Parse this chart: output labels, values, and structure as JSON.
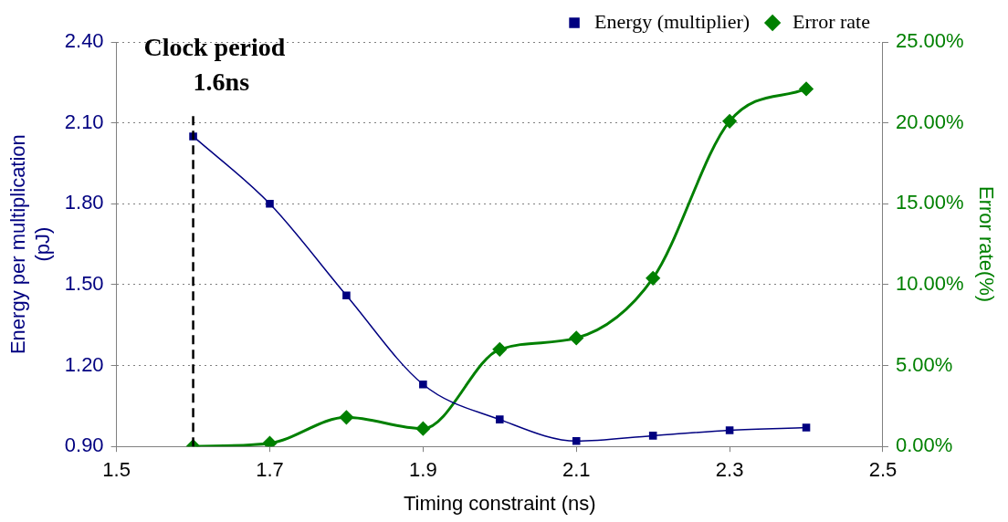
{
  "chart_data": {
    "type": "line",
    "xlabel": "Timing constraint (ns)",
    "ylabel": "Energy per multiplication\n(pJ)",
    "y2label": "Error rate(%)",
    "x": [
      1.6,
      1.7,
      1.8,
      1.9,
      2.0,
      2.1,
      2.2,
      2.3,
      2.4
    ],
    "series": [
      {
        "name": "Energy (multiplier)",
        "color": "#000080",
        "marker": "square",
        "values": [
          2.05,
          1.8,
          1.46,
          1.13,
          1.0,
          0.92,
          0.94,
          0.96,
          0.97
        ]
      },
      {
        "name": "Error rate",
        "color": "#008000",
        "marker": "diamond",
        "axis": "y2",
        "values": [
          0,
          0.2,
          1.8,
          1.1,
          6.0,
          6.7,
          10.4,
          20.1,
          22.1
        ]
      }
    ],
    "xlim": [
      1.5,
      2.5
    ],
    "xticks": [
      1.5,
      1.7,
      1.9,
      2.1,
      2.3,
      2.5
    ],
    "ylim": [
      0.9,
      2.4
    ],
    "yticks": [
      {
        "value": 0.9,
        "label": "0.90"
      },
      {
        "value": 1.2,
        "label": "1.20"
      },
      {
        "value": 1.5,
        "label": "1.50"
      },
      {
        "value": 1.8,
        "label": "1.80"
      },
      {
        "value": 2.1,
        "label": "2.10"
      },
      {
        "value": 2.4,
        "label": "2.40"
      }
    ],
    "y2lim": [
      0,
      25
    ],
    "y2ticks": [
      {
        "value": 0,
        "label": "0.00%"
      },
      {
        "value": 5,
        "label": "5.00%"
      },
      {
        "value": 10,
        "label": "10.00%"
      },
      {
        "value": 15,
        "label": "15.00%"
      },
      {
        "value": 20,
        "label": "20.00%"
      },
      {
        "value": 25,
        "label": "25.00%"
      }
    ],
    "ref_lines": [
      {
        "axis": "x",
        "value": 1.6,
        "label": "Clock period\n1.6ns",
        "color": "#000000",
        "line_style": "dashed"
      }
    ],
    "grid": "y",
    "legend": "top right",
    "line_style": "solid"
  }
}
